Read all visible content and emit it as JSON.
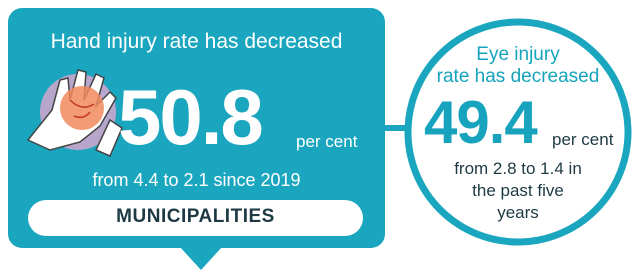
{
  "hand": {
    "title": "Hand injury rate has decreased",
    "value": "50.8",
    "unit": "per cent",
    "note": "from 4.4 to 2.1 since 2019",
    "label": "MUNICIPALITIES"
  },
  "eye": {
    "title_lines": [
      "Eye injury",
      "rate has decreased"
    ],
    "value": "49.4",
    "unit": "per cent",
    "note_lines": [
      "from 2.8 to 1.4 in",
      "the past five",
      "years"
    ]
  }
}
